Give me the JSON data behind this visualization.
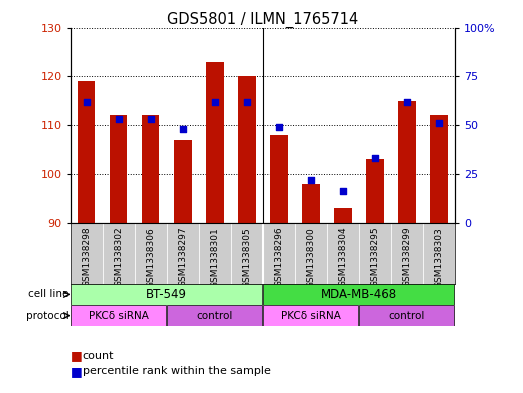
{
  "title": "GDS5801 / ILMN_1765714",
  "samples": [
    "GSM1338298",
    "GSM1338302",
    "GSM1338306",
    "GSM1338297",
    "GSM1338301",
    "GSM1338305",
    "GSM1338296",
    "GSM1338300",
    "GSM1338304",
    "GSM1338295",
    "GSM1338299",
    "GSM1338303"
  ],
  "counts": [
    119,
    112,
    112,
    107,
    123,
    120,
    108,
    98,
    93,
    103,
    115,
    112
  ],
  "percentiles": [
    62,
    53,
    53,
    48,
    62,
    62,
    49,
    22,
    16,
    33,
    62,
    51
  ],
  "ymin": 90,
  "ymax": 130,
  "yticks": [
    90,
    100,
    110,
    120,
    130
  ],
  "right_yticks": [
    0,
    25,
    50,
    75,
    100
  ],
  "right_ylabels": [
    "0",
    "25",
    "50",
    "75",
    "100%"
  ],
  "bar_color": "#bb1100",
  "dot_color": "#0000cc",
  "sample_bg": "#cccccc",
  "cell_line_labels": [
    {
      "label": "BT-549",
      "start": 0,
      "end": 6,
      "color": "#aaffaa"
    },
    {
      "label": "MDA-MB-468",
      "start": 6,
      "end": 12,
      "color": "#44dd44"
    }
  ],
  "protocol_labels": [
    {
      "label": "PKCδ siRNA",
      "start": 0,
      "end": 3,
      "color": "#ff88ff"
    },
    {
      "label": "control",
      "start": 3,
      "end": 6,
      "color": "#cc66dd"
    },
    {
      "label": "PKCδ siRNA",
      "start": 6,
      "end": 9,
      "color": "#ff88ff"
    },
    {
      "label": "control",
      "start": 9,
      "end": 12,
      "color": "#cc66dd"
    }
  ],
  "label_count": "count",
  "label_percentile": "percentile rank within the sample",
  "bar_width": 0.55,
  "tick_label_color_left": "#cc2200",
  "tick_label_color_right": "#0000cc",
  "plot_bg": "#ffffff",
  "border_color": "#000000"
}
